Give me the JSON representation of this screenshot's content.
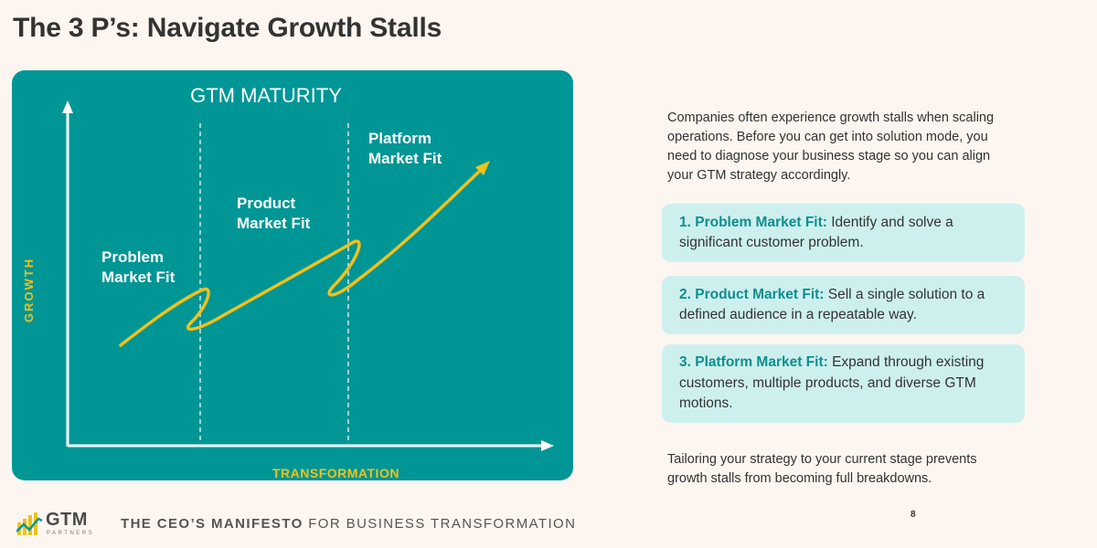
{
  "title": "The 3 P’s: Navigate Growth Stalls",
  "diagram": {
    "title": "GTM MATURITY",
    "y_axis_label": "GROWTH",
    "x_axis_label": "TRANSFORMATION",
    "stages": [
      {
        "line1": "Problem",
        "line2": "Market Fit"
      },
      {
        "line1": "Product",
        "line2": "Market Fit"
      },
      {
        "line1": "Platform",
        "line2": "Market Fit"
      }
    ],
    "colors": {
      "panel": "#009696",
      "curve": "#f2c11a",
      "axes": "#ffffff"
    }
  },
  "intro": "Companies often experience growth stalls when scaling operations. Before you can get into solution mode, you need to diagnose your business stage so you can align your GTM strategy accordingly.",
  "cards": [
    {
      "label": "1. Problem Market Fit:",
      "text": " Identify and solve a significant customer problem."
    },
    {
      "label": "2. Product Market Fit:",
      "text": " Sell a single solution to a defined audience in a repeatable way."
    },
    {
      "label": "3. Platform Market Fit:",
      "text": " Expand through existing customers, multiple products, and diverse GTM motions."
    }
  ],
  "outro": "Tailoring your strategy to your current stage prevents growth stalls from becoming full breakdowns.",
  "page_number": "8",
  "footer": {
    "bold": "THE CEO’S MANIFESTO",
    "rest": " FOR BUSINESS TRANSFORMATION"
  },
  "logo": {
    "name": "GTM",
    "sub": "PARTNERS"
  }
}
